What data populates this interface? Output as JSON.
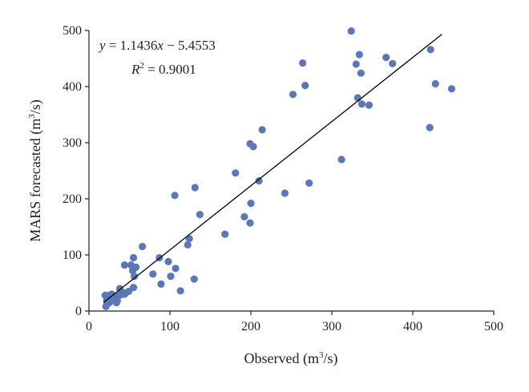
{
  "chart_data": {
    "type": "scatter",
    "xlabel": {
      "prefix": "Observed (m",
      "sup": "3",
      "suffix": "/s)"
    },
    "ylabel": {
      "prefix": "MARS forecasted (m",
      "sup": "3",
      "suffix": "/s)"
    },
    "xlim": [
      0,
      500
    ],
    "ylim": [
      0,
      500
    ],
    "xticks": [
      0,
      100,
      200,
      300,
      400,
      500
    ],
    "yticks": [
      0,
      100,
      200,
      300,
      400,
      500
    ],
    "grid": false,
    "legend": "none",
    "colors": {
      "points": "#5a78b8",
      "fit_line": "#000000"
    },
    "annotation": {
      "equation": {
        "lhs": "y",
        "rest": " = 1.1436",
        "var": "x",
        "tail": " − 5.4553"
      },
      "r2": {
        "base": "R",
        "sup": "2",
        "tail": " = 0.9001"
      }
    },
    "fit_line": {
      "slope": 1.1436,
      "intercept": -5.4553,
      "x_range": [
        18,
        436
      ]
    },
    "points": [
      [
        324,
        499
      ],
      [
        264,
        442
      ],
      [
        330,
        440
      ],
      [
        334,
        457
      ],
      [
        336,
        424
      ],
      [
        367,
        452
      ],
      [
        375,
        441
      ],
      [
        267,
        402
      ],
      [
        252,
        386
      ],
      [
        332,
        380
      ],
      [
        337,
        369
      ],
      [
        346,
        367
      ],
      [
        422,
        466
      ],
      [
        428,
        405
      ],
      [
        448,
        396
      ],
      [
        421,
        327
      ],
      [
        214,
        323
      ],
      [
        199,
        298
      ],
      [
        203,
        293
      ],
      [
        312,
        270
      ],
      [
        181,
        246
      ],
      [
        210,
        232
      ],
      [
        272,
        228
      ],
      [
        242,
        210
      ],
      [
        131,
        220
      ],
      [
        106,
        206
      ],
      [
        137,
        172
      ],
      [
        192,
        168
      ],
      [
        200,
        192
      ],
      [
        199,
        157
      ],
      [
        168,
        137
      ],
      [
        124,
        129
      ],
      [
        122,
        118
      ],
      [
        66,
        115
      ],
      [
        87,
        95
      ],
      [
        98,
        88
      ],
      [
        55,
        95
      ],
      [
        44,
        82
      ],
      [
        52,
        82
      ],
      [
        58,
        78
      ],
      [
        54,
        72
      ],
      [
        107,
        76
      ],
      [
        79,
        66
      ],
      [
        56,
        62
      ],
      [
        101,
        62
      ],
      [
        130,
        57
      ],
      [
        89,
        48
      ],
      [
        55,
        42
      ],
      [
        113,
        36
      ],
      [
        38,
        40
      ],
      [
        49,
        35
      ],
      [
        42,
        33
      ],
      [
        44,
        30
      ],
      [
        38,
        28
      ],
      [
        33,
        27
      ],
      [
        30,
        22
      ],
      [
        28,
        20
      ],
      [
        35,
        18
      ],
      [
        34,
        15
      ],
      [
        22,
        20
      ],
      [
        25,
        15
      ],
      [
        21,
        8
      ],
      [
        22,
        12
      ],
      [
        25,
        28
      ],
      [
        20,
        28
      ],
      [
        28,
        30
      ]
    ]
  }
}
